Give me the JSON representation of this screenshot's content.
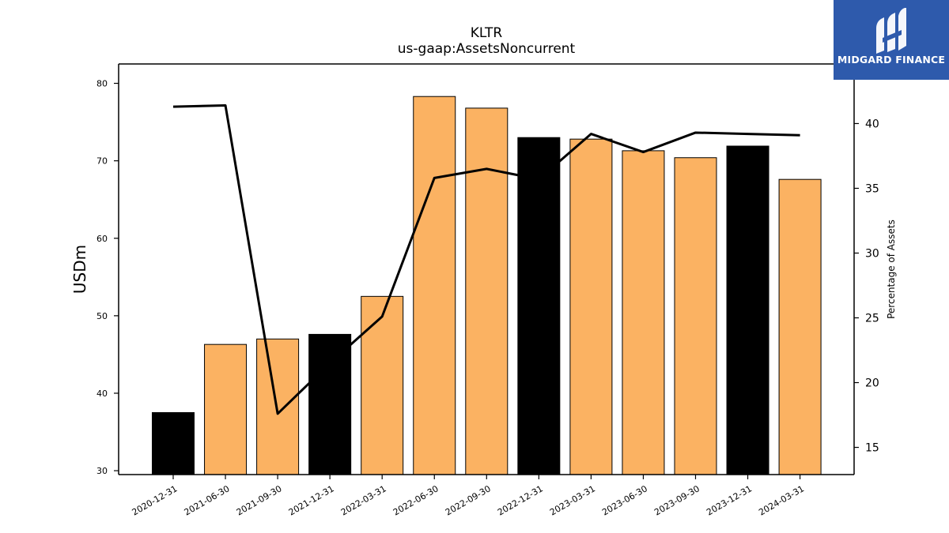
{
  "chart_data": {
    "type": "bar",
    "title": "KLTR",
    "subtitle": "us-gaap:AssetsNoncurrent",
    "ylabel": "USDm",
    "y2label": "Percentage of Assets",
    "ylim": [
      29.5,
      82.5
    ],
    "y2lim": [
      12.9,
      44.6
    ],
    "yticks": [
      30,
      40,
      50,
      60,
      70,
      80
    ],
    "y2ticks": [
      15,
      20,
      25,
      30,
      35,
      40
    ],
    "categories": [
      "2020-12-31",
      "2021-06-30",
      "2021-09-30",
      "2021-12-31",
      "2022-03-31",
      "2022-06-30",
      "2022-09-30",
      "2022-12-31",
      "2023-03-31",
      "2023-06-30",
      "2023-09-30",
      "2023-12-31",
      "2024-03-31"
    ],
    "series": [
      {
        "axis": "left",
        "kind": "bar",
        "values": [
          37.5,
          46.3,
          47.0,
          47.6,
          52.5,
          78.3,
          76.8,
          73.0,
          72.8,
          71.3,
          70.4,
          71.9,
          67.6
        ],
        "colors": [
          "#000000",
          "#fbb262",
          "#fbb262",
          "#000000",
          "#fbb262",
          "#fbb262",
          "#fbb262",
          "#000000",
          "#fbb262",
          "#fbb262",
          "#fbb262",
          "#000000",
          "#fbb262"
        ]
      },
      {
        "axis": "right",
        "kind": "line",
        "values": [
          41.3,
          41.4,
          17.6,
          21.5,
          25.1,
          35.8,
          36.5,
          35.7,
          39.2,
          37.8,
          39.3,
          39.2,
          39.1
        ],
        "color": "#000000"
      }
    ],
    "grid": false,
    "legend": "none"
  },
  "logo": {
    "text": "MIDGARD FINANCE",
    "background": "#2e5aac"
  }
}
